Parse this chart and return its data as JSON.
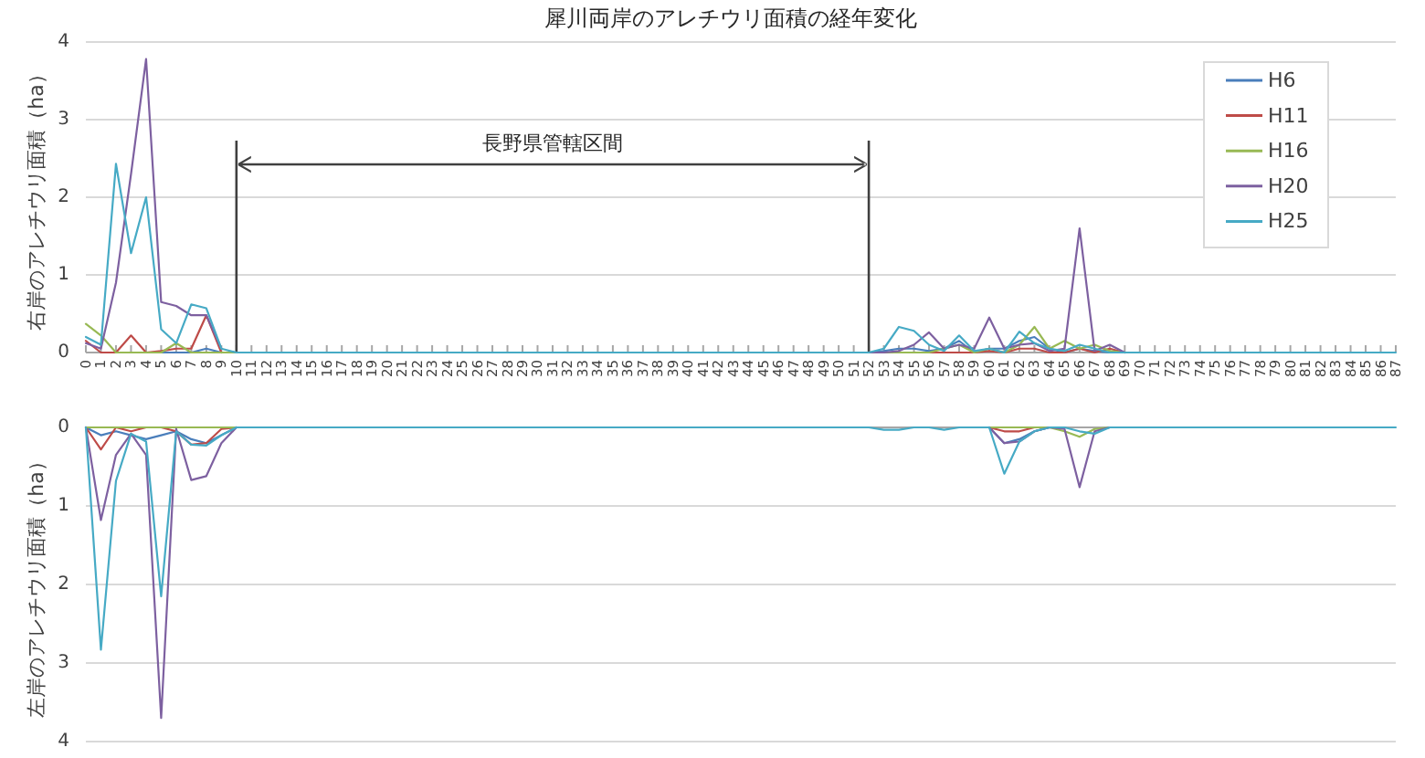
{
  "chart_data": [
    {
      "type": "line",
      "title": "犀川両岸のアレチウリ面積の経年変化",
      "ylabel": "右岸のアレチウリ面積（ha）",
      "x": [
        0,
        1,
        2,
        3,
        4,
        5,
        6,
        7,
        8,
        9,
        10,
        11,
        12,
        13,
        14,
        15,
        16,
        17,
        18,
        19,
        20,
        21,
        22,
        23,
        24,
        25,
        26,
        27,
        28,
        29,
        30,
        31,
        32,
        33,
        34,
        35,
        36,
        37,
        38,
        39,
        40,
        41,
        42,
        43,
        44,
        45,
        46,
        47,
        48,
        49,
        50,
        51,
        52,
        53,
        54,
        55,
        56,
        57,
        58,
        59,
        60,
        61,
        62,
        63,
        64,
        65,
        66,
        67,
        68,
        69,
        70,
        71,
        72,
        73,
        74,
        75,
        76,
        77,
        78,
        79,
        80,
        81,
        82,
        83,
        84,
        85,
        86,
        87
      ],
      "xlim": [
        0,
        87
      ],
      "xticks": [
        0,
        1,
        2,
        3,
        4,
        5,
        6,
        7,
        8,
        9,
        10,
        11,
        12,
        13,
        14,
        15,
        16,
        17,
        18,
        19,
        20,
        21,
        22,
        23,
        24,
        25,
        26,
        27,
        28,
        29,
        30,
        31,
        32,
        33,
        34,
        35,
        36,
        37,
        38,
        39,
        40,
        41,
        42,
        43,
        44,
        45,
        46,
        47,
        48,
        49,
        50,
        51,
        52,
        53,
        54,
        55,
        56,
        57,
        58,
        59,
        60,
        61,
        62,
        63,
        64,
        65,
        66,
        67,
        68,
        69,
        70,
        71,
        72,
        73,
        74,
        75,
        76,
        77,
        78,
        79,
        80,
        81,
        82,
        83,
        84,
        85,
        86,
        87
      ],
      "ylim": [
        0,
        4
      ],
      "yticks": [
        0,
        1,
        2,
        3,
        4
      ],
      "grid": "y",
      "legend": "top right",
      "series": [
        {
          "name": "H6",
          "color": "#4a7ebb",
          "values": [
            null,
            null,
            null,
            null,
            null,
            0,
            0,
            0,
            0.05,
            0,
            null,
            null,
            null,
            null,
            null,
            null,
            null,
            null,
            null,
            null,
            null,
            null,
            null,
            null,
            null,
            null,
            null,
            null,
            null,
            null,
            null,
            null,
            null,
            null,
            null,
            null,
            null,
            null,
            null,
            null,
            null,
            null,
            null,
            null,
            null,
            null,
            null,
            null,
            null,
            null,
            null,
            null,
            0,
            0.02,
            0.05,
            0.05,
            0.02,
            0.05,
            0.15,
            0,
            0.05,
            0.05,
            0.15,
            0.2,
            0.05,
            0,
            0.05,
            0.02,
            0,
            null,
            null,
            null,
            null,
            null,
            null,
            null,
            null,
            null,
            null,
            null,
            null,
            null,
            null,
            null,
            null,
            null,
            null,
            null
          ]
        },
        {
          "name": "H11",
          "color": "#be4b48",
          "values": [
            0.15,
            0,
            0,
            0.22,
            0,
            0.02,
            0.05,
            0.05,
            0.48,
            0,
            null,
            null,
            null,
            null,
            null,
            null,
            null,
            null,
            null,
            null,
            null,
            null,
            null,
            null,
            null,
            null,
            null,
            null,
            null,
            null,
            null,
            null,
            null,
            null,
            null,
            null,
            null,
            null,
            null,
            null,
            null,
            null,
            null,
            null,
            null,
            null,
            null,
            null,
            null,
            null,
            null,
            null,
            null,
            null,
            null,
            null,
            0,
            0,
            0,
            0,
            0.02,
            0,
            0.05,
            0.05,
            0,
            0,
            0.05,
            0,
            0.05,
            0,
            null,
            null,
            null,
            null,
            null,
            null,
            null,
            null,
            null,
            null,
            null,
            null,
            null,
            null,
            null,
            null,
            null,
            null
          ]
        },
        {
          "name": "H16",
          "color": "#98b954",
          "values": [
            0.37,
            0.22,
            0,
            0,
            0,
            0,
            0.12,
            0,
            0,
            0,
            0,
            null,
            null,
            null,
            null,
            null,
            null,
            null,
            null,
            null,
            null,
            null,
            null,
            null,
            null,
            null,
            null,
            null,
            null,
            null,
            null,
            null,
            null,
            null,
            null,
            null,
            null,
            null,
            null,
            null,
            null,
            null,
            null,
            null,
            null,
            null,
            null,
            null,
            null,
            null,
            null,
            null,
            null,
            0,
            0,
            0,
            0,
            0.05,
            0.1,
            0,
            0.05,
            0,
            0.1,
            0.33,
            0.05,
            0.15,
            0.05,
            0.1,
            0.02,
            0,
            null,
            null,
            null,
            null,
            null,
            null,
            null,
            null,
            null,
            null,
            null,
            null,
            null,
            null,
            null,
            null,
            null,
            null
          ]
        },
        {
          "name": "H20",
          "color": "#7d60a0",
          "values": [
            0.12,
            0.05,
            0.9,
            2.3,
            3.78,
            0.65,
            0.6,
            0.48,
            0.48,
            0.05,
            null,
            null,
            null,
            null,
            null,
            null,
            null,
            null,
            null,
            null,
            null,
            null,
            null,
            null,
            null,
            null,
            null,
            null,
            null,
            null,
            null,
            null,
            null,
            null,
            null,
            null,
            null,
            null,
            null,
            null,
            null,
            null,
            null,
            null,
            null,
            null,
            null,
            null,
            null,
            null,
            null,
            null,
            0,
            0,
            0.02,
            0.1,
            0.26,
            0.05,
            0.1,
            0.05,
            0.45,
            0.05,
            0.1,
            0.12,
            0.02,
            0.05,
            1.6,
            0.02,
            0.1,
            0,
            null,
            null,
            null,
            null,
            null,
            null,
            null,
            null,
            null,
            null,
            null,
            null,
            null,
            null,
            null,
            null,
            null,
            null
          ]
        },
        {
          "name": "H25",
          "color": "#46aac5",
          "values": [
            0.2,
            0.1,
            2.43,
            1.28,
            2,
            0.3,
            0.12,
            0.62,
            0.57,
            0.05,
            0,
            0,
            0,
            0,
            0,
            0,
            0,
            0,
            0,
            0,
            0,
            0,
            0,
            0,
            0,
            0,
            0,
            0,
            0,
            0,
            0,
            0,
            0,
            0,
            0,
            0,
            0,
            0,
            0,
            0,
            0,
            0,
            0,
            0,
            0,
            0,
            0,
            0,
            0,
            0,
            0,
            0,
            0,
            0.05,
            0.33,
            0.28,
            0.1,
            0.02,
            0.22,
            0.02,
            0.05,
            0,
            0.27,
            0.12,
            0.05,
            0.02,
            0.1,
            0.05,
            0,
            0,
            0,
            0,
            0,
            0,
            0,
            0,
            0,
            0,
            0,
            0,
            0,
            0,
            0,
            0,
            0,
            0,
            0,
            0
          ]
        }
      ],
      "ref_lines": [
        {
          "axis": "x",
          "value": 10,
          "color": "#404040"
        },
        {
          "axis": "x",
          "value": 52,
          "color": "#404040"
        }
      ],
      "annotations": [
        "長野県管轄区間"
      ]
    },
    {
      "type": "line",
      "ylabel": "左岸のアレチウリ面積（ha）",
      "x": [
        0,
        1,
        2,
        3,
        4,
        5,
        6,
        7,
        8,
        9,
        10,
        11,
        12,
        13,
        14,
        15,
        16,
        17,
        18,
        19,
        20,
        21,
        22,
        23,
        24,
        25,
        26,
        27,
        28,
        29,
        30,
        31,
        32,
        33,
        34,
        35,
        36,
        37,
        38,
        39,
        40,
        41,
        42,
        43,
        44,
        45,
        46,
        47,
        48,
        49,
        50,
        51,
        52,
        53,
        54,
        55,
        56,
        57,
        58,
        59,
        60,
        61,
        62,
        63,
        64,
        65,
        66,
        67,
        68,
        69,
        70,
        71,
        72,
        73,
        74,
        75,
        76,
        77,
        78,
        79,
        80,
        81,
        82,
        83,
        84,
        85,
        86,
        87
      ],
      "xlim": [
        0,
        87
      ],
      "ylim": [
        4,
        0
      ],
      "yticks": [
        0,
        1,
        2,
        3,
        4
      ],
      "grid": "y",
      "tick_labels": "y",
      "series": [
        {
          "color": "#4a7ebb",
          "values": [
            0,
            0.1,
            0.05,
            0.1,
            0.15,
            0.1,
            0.05,
            0.15,
            0.2,
            0.1,
            0,
            null,
            null,
            null,
            null,
            null,
            null,
            null,
            null,
            null,
            null,
            null,
            null,
            null,
            null,
            null,
            null,
            null,
            null,
            null,
            null,
            null,
            null,
            null,
            null,
            null,
            null,
            null,
            null,
            null,
            null,
            null,
            null,
            null,
            null,
            null,
            null,
            null,
            null,
            null,
            null,
            null,
            null,
            null,
            null,
            null,
            null,
            null,
            null,
            null,
            0,
            0.2,
            0.15,
            0.05,
            0,
            null,
            null,
            null,
            null,
            null,
            null,
            null,
            null,
            null,
            null,
            null,
            null,
            null,
            null,
            null,
            null,
            null,
            null,
            null,
            null,
            null,
            null,
            null
          ]
        },
        {
          "color": "#be4b48",
          "values": [
            0,
            0.28,
            0,
            0.05,
            0,
            0,
            0.05,
            0.22,
            0.2,
            0.02,
            0,
            null,
            null,
            null,
            null,
            null,
            null,
            null,
            null,
            null,
            null,
            null,
            null,
            null,
            null,
            null,
            null,
            null,
            null,
            null,
            null,
            null,
            null,
            null,
            null,
            null,
            null,
            null,
            null,
            null,
            null,
            null,
            null,
            null,
            null,
            null,
            null,
            null,
            null,
            null,
            null,
            null,
            null,
            null,
            null,
            null,
            null,
            null,
            null,
            null,
            0,
            0.05,
            0.05,
            0,
            null,
            null,
            null,
            null,
            null,
            null,
            null,
            null,
            null,
            null,
            null,
            null,
            null,
            null,
            null,
            null,
            null,
            null,
            null,
            null,
            null,
            null,
            null,
            null
          ]
        },
        {
          "color": "#98b954",
          "values": [
            0,
            0,
            0,
            0,
            0,
            0,
            0,
            0,
            0,
            0,
            0,
            null,
            null,
            null,
            null,
            null,
            null,
            null,
            null,
            null,
            null,
            null,
            null,
            null,
            null,
            null,
            null,
            null,
            null,
            null,
            null,
            null,
            null,
            null,
            null,
            null,
            null,
            null,
            null,
            null,
            null,
            null,
            null,
            null,
            null,
            null,
            null,
            null,
            null,
            null,
            null,
            null,
            null,
            null,
            null,
            null,
            null,
            null,
            null,
            null,
            0,
            0,
            0,
            0,
            0,
            0.05,
            0.12,
            0.02,
            0,
            null,
            null,
            null,
            null,
            null,
            null,
            null,
            null,
            null,
            null,
            null,
            null,
            null,
            null,
            null,
            null,
            null,
            null,
            null
          ]
        },
        {
          "color": "#7d60a0",
          "values": [
            0,
            1.18,
            0.35,
            0.08,
            0.35,
            3.7,
            0.02,
            0.67,
            0.62,
            0.2,
            0,
            null,
            null,
            null,
            null,
            null,
            null,
            null,
            null,
            null,
            null,
            null,
            null,
            null,
            null,
            null,
            null,
            null,
            null,
            null,
            null,
            null,
            null,
            null,
            null,
            null,
            null,
            null,
            null,
            null,
            null,
            null,
            null,
            null,
            null,
            null,
            null,
            null,
            null,
            null,
            null,
            null,
            null,
            null,
            null,
            null,
            null,
            null,
            null,
            null,
            0,
            0.2,
            0.18,
            0.05,
            0,
            0.02,
            0.76,
            0.05,
            0,
            null,
            null,
            null,
            null,
            null,
            null,
            null,
            null,
            null,
            null,
            null,
            null,
            null,
            null,
            null,
            null,
            null,
            null,
            null
          ]
        },
        {
          "color": "#46aac5",
          "values": [
            0,
            2.83,
            0.68,
            0.08,
            0.18,
            2.15,
            0.05,
            0.22,
            0.23,
            0.1,
            0,
            0,
            0,
            0,
            0,
            0,
            0,
            0,
            0,
            0,
            0,
            0,
            0,
            0,
            0,
            0,
            0,
            0,
            0,
            0,
            0,
            0,
            0,
            0,
            0,
            0,
            0,
            0,
            0,
            0,
            0,
            0,
            0,
            0,
            0,
            0,
            0,
            0,
            0,
            0,
            0,
            0,
            0,
            0.03,
            0.03,
            0,
            0,
            0.03,
            0,
            0,
            0,
            0.59,
            0.18,
            0.05,
            0,
            0,
            0.05,
            0.08,
            0,
            0,
            0,
            0,
            0,
            0,
            0,
            0,
            0,
            0,
            0,
            0,
            0,
            0,
            0,
            0,
            0,
            0,
            0,
            0
          ]
        }
      ]
    }
  ]
}
